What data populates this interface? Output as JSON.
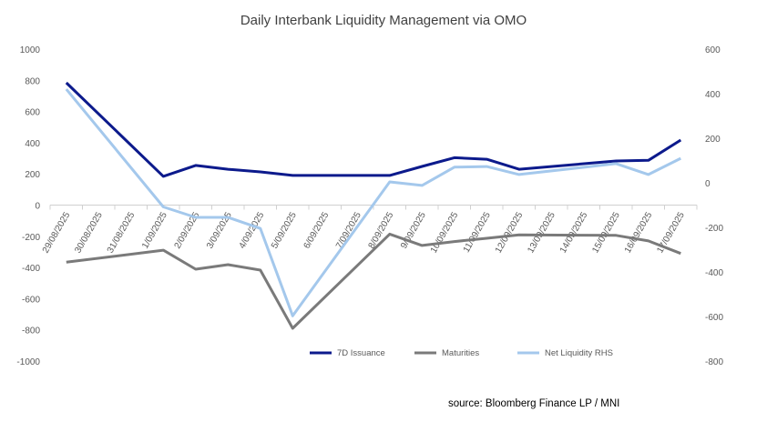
{
  "chart_data": {
    "type": "line",
    "title": "Daily Interbank Liquidity Management via OMO",
    "source": "source: Bloomberg Finance LP / MNI",
    "categories": [
      "29/08/2025",
      "30/08/2025",
      "31/08/2025",
      "1/09/2025",
      "2/09/2025",
      "3/09/2025",
      "4/09/2025",
      "5/09/2025",
      "6/09/2025",
      "7/09/2025",
      "8/09/2025",
      "9/09/2025",
      "10/09/2025",
      "11/09/2025",
      "12/09/2025",
      "13/09/2025",
      "14/09/2025",
      "15/09/2025",
      "16/09/2025",
      "17/09/2025"
    ],
    "left_axis": {
      "min": -1000,
      "max": 1000,
      "step": 200,
      "ticks": [
        "1000",
        "800",
        "600",
        "400",
        "200",
        "0",
        "-200",
        "-400",
        "-600",
        "-800",
        "-1000"
      ]
    },
    "right_axis": {
      "min": -800,
      "max": 600,
      "step": 200,
      "ticks": [
        "600",
        "400",
        "200",
        "0",
        "-200",
        "-400",
        "-600",
        "-800"
      ]
    },
    "legend_position": "bottom",
    "series": [
      {
        "name": "7D Issuance",
        "axis": "left",
        "color": "#0c1a8c",
        "values": [
          784,
          null,
          null,
          184,
          254,
          230,
          213,
          190,
          null,
          null,
          190,
          248,
          304,
          294,
          230,
          null,
          null,
          283,
          287,
          417
        ]
      },
      {
        "name": "Maturities",
        "axis": "left",
        "color": "#7a7a7a",
        "values": [
          -366,
          null,
          null,
          -289,
          -411,
          -382,
          -417,
          -790,
          null,
          null,
          -186,
          -259,
          -234,
          -213,
          -191,
          null,
          null,
          -194,
          -230,
          -310
        ]
      },
      {
        "name": "Net Liquidity RHS",
        "axis": "right",
        "color": "#a4c8ec",
        "values": [
          420,
          null,
          null,
          -108,
          -155,
          -155,
          -205,
          -597,
          null,
          null,
          4,
          -12,
          70,
          73,
          37,
          null,
          null,
          86,
          37,
          110
        ]
      }
    ]
  }
}
